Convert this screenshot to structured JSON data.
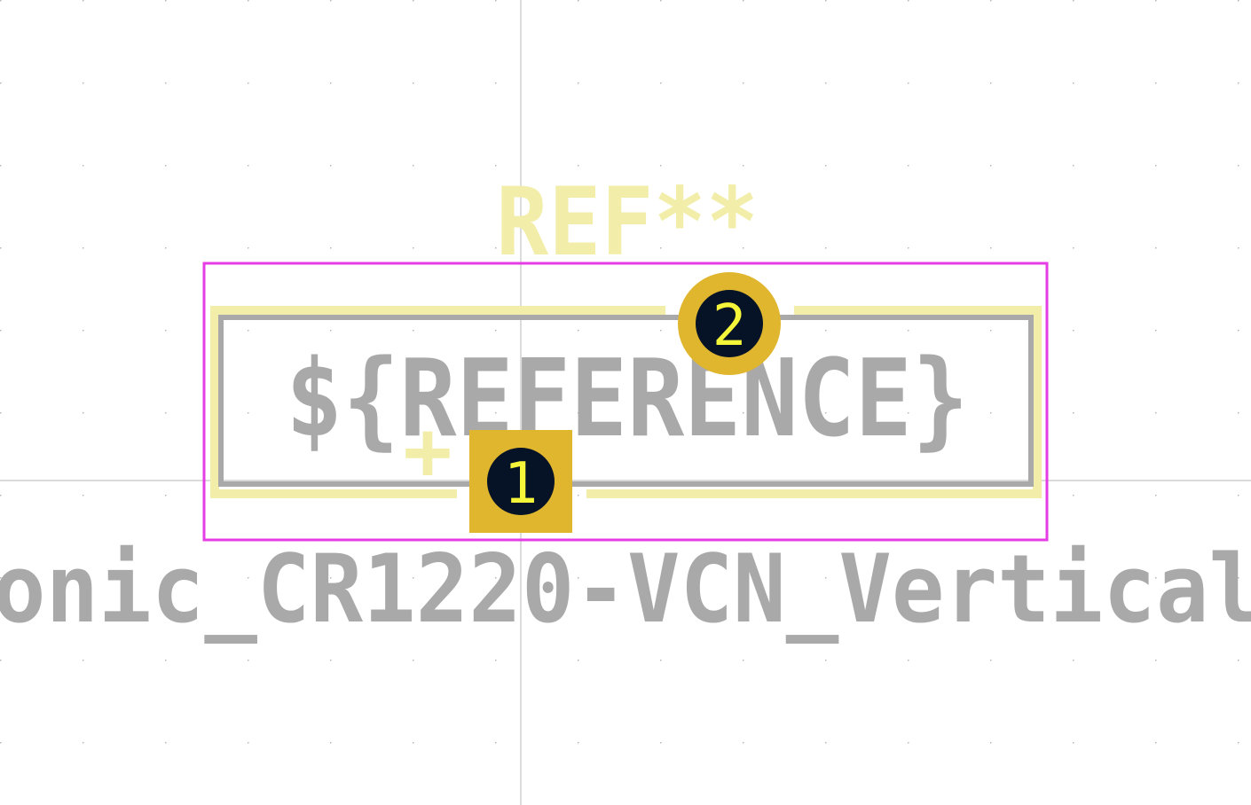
{
  "footprint": {
    "ref_text": "REF**",
    "fab_reference_text": "${REFERENCE}",
    "value_text": "onic_CR1220-VCN_Vertical",
    "polarity_mark": "+",
    "pads": [
      {
        "number": "1",
        "shape": "square"
      },
      {
        "number": "2",
        "shape": "circle"
      }
    ]
  },
  "colors": {
    "background": "#ffffff",
    "grid_dot": "#b8b8b8",
    "crosshair": "#c4c4c4",
    "courtyard": "#e63ce6",
    "silkscreen": "#f2eeaa",
    "fab": "#a9a9a9",
    "pad": "#e0b62e",
    "pad_hole": "#061326",
    "pad_number": "#f5f53a"
  }
}
